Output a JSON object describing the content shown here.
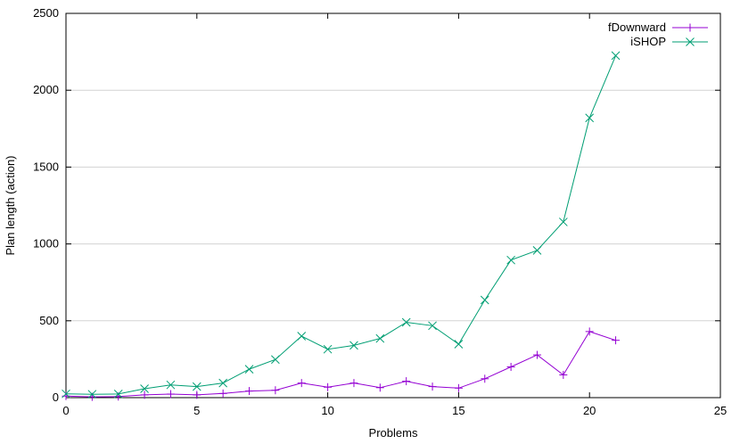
{
  "chart_data": {
    "type": "line",
    "title": "",
    "xlabel": "Problems",
    "ylabel": "Plan length (action)",
    "xlim": [
      0,
      25
    ],
    "ylim": [
      0,
      2500
    ],
    "xticks": [
      0,
      5,
      10,
      15,
      20,
      25
    ],
    "yticks": [
      0,
      500,
      1000,
      1500,
      2000,
      2500
    ],
    "xtick_labels": [
      "0",
      "5",
      "10",
      "15",
      "20",
      "25"
    ],
    "ytick_labels": [
      "0",
      "500",
      "1000",
      "1500",
      "2000",
      "2500"
    ],
    "grid": "horizontal",
    "legend_position": "top-right",
    "series": [
      {
        "name": "fDownward",
        "color": "#9400d3",
        "marker": "plus",
        "x": [
          0,
          1,
          2,
          3,
          4,
          5,
          6,
          7,
          8,
          9,
          10,
          11,
          12,
          13,
          14,
          15,
          16,
          17,
          18,
          19,
          20,
          21
        ],
        "values": [
          10,
          5,
          7,
          18,
          23,
          18,
          27,
          43,
          48,
          95,
          68,
          95,
          65,
          107,
          72,
          62,
          123,
          200,
          278,
          148,
          430,
          373
        ]
      },
      {
        "name": "iSHOP",
        "color": "#009e73",
        "marker": "cross",
        "x": [
          0,
          1,
          2,
          3,
          4,
          5,
          6,
          7,
          8,
          9,
          10,
          11,
          12,
          13,
          14,
          15,
          16,
          17,
          18,
          19,
          20,
          21
        ],
        "values": [
          25,
          22,
          24,
          58,
          83,
          72,
          95,
          185,
          248,
          400,
          315,
          340,
          385,
          490,
          468,
          348,
          635,
          895,
          958,
          1143,
          1820,
          2225
        ]
      }
    ]
  }
}
